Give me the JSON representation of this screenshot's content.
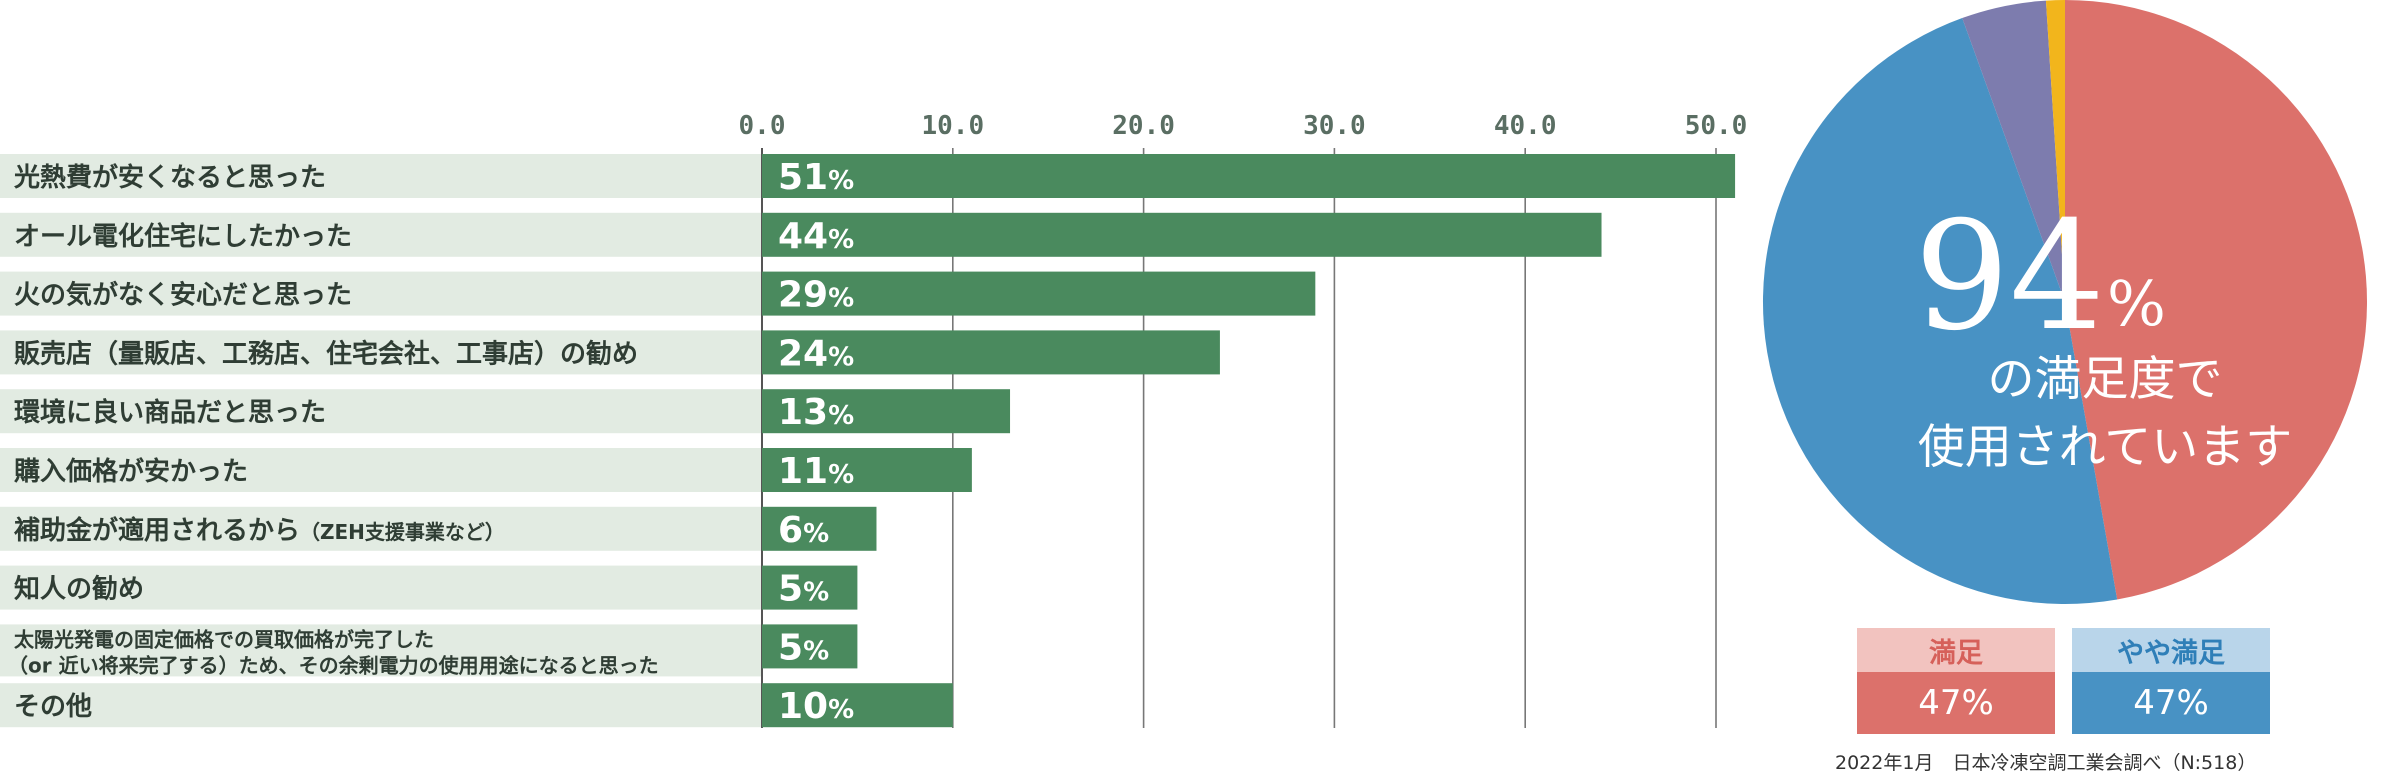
{
  "colors": {
    "bar": "#4a8a5e",
    "label_bg": "#e2ebe2",
    "manzoku": "#dc716b",
    "yaya_manzoku": "#4892c4",
    "purple": "#7d7cae",
    "yellow": "#f2b51c",
    "manzoku_head_bg": "#f2c3bf",
    "yaya_head_bg": "#b9d5ea"
  },
  "chart_data": [
    {
      "type": "bar",
      "orientation": "horizontal",
      "categories": [
        "光熱費が安くなると思った",
        "オール電化住宅にしたかった",
        "火の気がなく安心だと思った",
        "販売店（量販店、工務店、住宅会社、工事店）の勧め",
        "環境に良い商品だと思った",
        "購入価格が安かった",
        "補助金が適用されるから",
        "知人の勧め",
        "太陽光発電の固定価格での買取価格が完了した",
        "その他"
      ],
      "category_suffix": [
        "",
        "",
        "",
        "",
        "",
        "",
        "（ZEH支援事業など）",
        "",
        "",
        ""
      ],
      "category_line2": [
        "",
        "",
        "",
        "",
        "",
        "",
        "",
        "",
        "（or 近い将来完了する）ため、その余剰電力の使用用途になると思った",
        ""
      ],
      "values": [
        51,
        44,
        29,
        24,
        13,
        11,
        6,
        5,
        5,
        10
      ],
      "value_units": "%",
      "xlim": [
        0,
        53
      ],
      "ticks": [
        "0.0",
        "10.0",
        "20.0",
        "30.0",
        "40.0",
        "50.0"
      ],
      "grid": true
    },
    {
      "type": "pie",
      "labels": [
        "満足",
        "やや満足",
        "",
        ""
      ],
      "values": [
        47,
        47,
        4.5,
        1
      ],
      "center_big": "94",
      "center_unit": "%",
      "center_line1": "の満足度で",
      "center_line2": "使用されています",
      "legend": [
        {
          "label": "満足",
          "value": "47%"
        },
        {
          "label": "やや満足",
          "value": "47%"
        }
      ]
    }
  ],
  "source_note": "2022年1月　日本冷凍空調工業会調べ（N:518）"
}
